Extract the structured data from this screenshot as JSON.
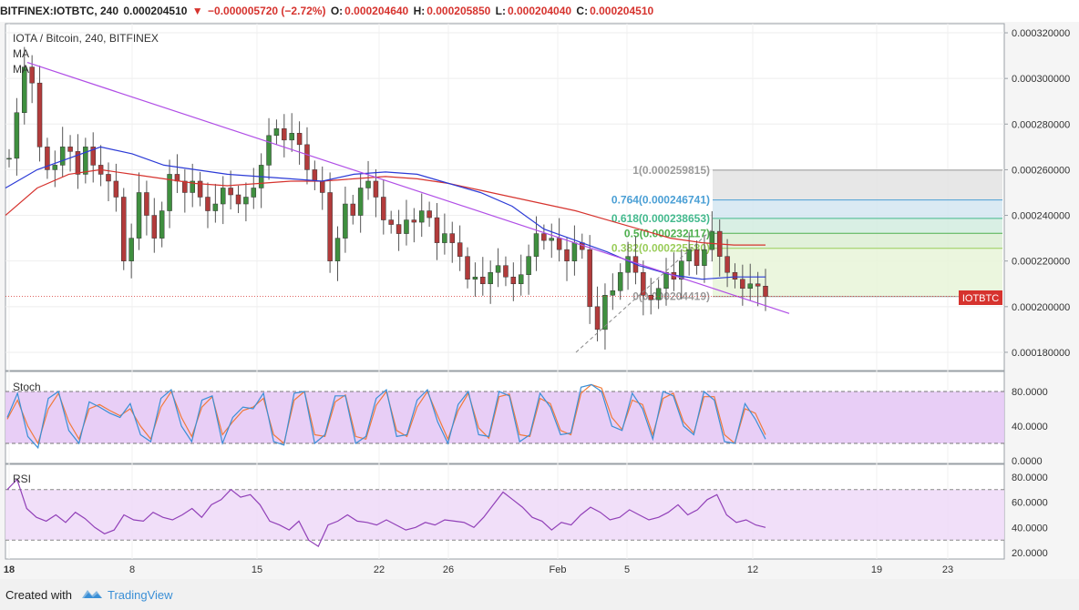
{
  "header": {
    "symbol": "BITFINEX:IOTBTC, 240",
    "last": "0.000204510",
    "arrow": "▼",
    "change": "−0.000005720 (−2.72%)",
    "o_label": "O:",
    "o": "0.000204640",
    "h_label": "H:",
    "h": "0.000205850",
    "l_label": "L:",
    "l": "0.000204040",
    "c_label": "C:",
    "c": "0.000204510"
  },
  "legend": {
    "title": "IOTA / Bitcoin, 240, BITFINEX",
    "ma1": "MA",
    "ma2": "MA"
  },
  "price_tag": "IOTBTC",
  "fib": {
    "levels": [
      {
        "ratio": 1,
        "label": "1(0.000259815)",
        "value": 0.000259815,
        "fill": "#e3e3e3",
        "color": "#9a9a9a"
      },
      {
        "ratio": 0.764,
        "label": "0.764(0.000246741)",
        "value": 0.000246741,
        "fill": "#d4e6f1",
        "color": "#4a9fd5"
      },
      {
        "ratio": 0.618,
        "label": "0.618(0.000238653)",
        "value": 0.000238653,
        "fill": "#d2ecdf",
        "color": "#43b98d"
      },
      {
        "ratio": 0.5,
        "label": "0.5(0.000232117)",
        "value": 0.000232117,
        "fill": "#dcefd4",
        "color": "#4fb04f"
      },
      {
        "ratio": 0.382,
        "label": "0.382(0.000225580)",
        "value": 0.00022558,
        "fill": "#e8f4d8",
        "color": "#9acd5a"
      },
      {
        "ratio": 0,
        "label": "0(0.000204419)",
        "value": 0.000204419,
        "fill": "#e8f4d8",
        "color": "#9a9a9a"
      }
    ]
  },
  "panels": {
    "stoch_label": "Stoch",
    "rsi_label": "RSI"
  },
  "footer": {
    "created": "Created with",
    "brand": "TradingView"
  },
  "chart_data": {
    "type": "candlestick",
    "title": "IOTA / Bitcoin, 240, BITFINEX",
    "x_ticks": [
      "18",
      "8",
      "15",
      "22",
      "26",
      "Feb",
      "5",
      "12",
      "19",
      "23"
    ],
    "y_ticks": [
      "0.000320000",
      "0.000300000",
      "0.000280000",
      "0.000260000",
      "0.000240000",
      "0.000220000",
      "0.000200000",
      "0.000180000"
    ],
    "ylim": [
      0.000172,
      0.000324
    ],
    "last_price": 0.00020451,
    "close_series": [
      0.000265,
      0.000285,
      0.000305,
      0.000298,
      0.00027,
      0.00026,
      0.000262,
      0.00027,
      0.000268,
      0.000258,
      0.00027,
      0.000262,
      0.000258,
      0.000255,
      0.000248,
      0.00022,
      0.00023,
      0.00025,
      0.00024,
      0.00023,
      0.000242,
      0.000258,
      0.000255,
      0.00025,
      0.000255,
      0.000248,
      0.000242,
      0.000245,
      0.000252,
      0.000249,
      0.000245,
      0.000248,
      0.000252,
      0.000262,
      0.000275,
      0.000278,
      0.000273,
      0.000276,
      0.000271,
      0.00026,
      0.000255,
      0.00025,
      0.00022,
      0.00023,
      0.000245,
      0.00024,
      0.000252,
      0.000255,
      0.000248,
      0.000238,
      0.000236,
      0.000232,
      0.000238,
      0.000237,
      0.000242,
      0.000239,
      0.000228,
      0.000232,
      0.000228,
      0.000222,
      0.000212,
      0.000213,
      0.00021,
      0.000215,
      0.000218,
      0.000213,
      0.00021,
      0.000214,
      0.000222,
      0.000232,
      0.000229,
      0.00023,
      0.000225,
      0.00022,
      0.000228,
      0.000225,
      0.0002,
      0.00019,
      0.000205,
      0.000207,
      0.000215,
      0.000222,
      0.000215,
      0.000205,
      0.000203,
      0.000208,
      0.000215,
      0.000212,
      0.00022,
      0.000225,
      0.000218,
      0.000225,
      0.000233,
      0.000222,
      0.000215,
      0.000212,
      0.000208,
      0.00021,
      0.000209,
      0.0002045
    ],
    "ma_blue": [
      0.000252,
      0.00026,
      0.000265,
      0.00027,
      0.000267,
      0.000262,
      0.00026,
      0.000258,
      0.000257,
      0.000256,
      0.000255,
      0.000258,
      0.000259,
      0.000258,
      0.000254,
      0.00025,
      0.000244,
      0.000234,
      0.000229,
      0.000224,
      0.000218,
      0.000214,
      0.000212,
      0.000213,
      0.000213
    ],
    "ma_red": [
      0.00024,
      0.000252,
      0.000258,
      0.00026,
      0.000258,
      0.000256,
      0.000254,
      0.000253,
      0.000254,
      0.000255,
      0.000255,
      0.000256,
      0.000257,
      0.000256,
      0.000254,
      0.000251,
      0.000248,
      0.000245,
      0.000242,
      0.000238,
      0.000234,
      0.00023,
      0.000228,
      0.000227,
      0.000227
    ],
    "trendline": {
      "from": 0.000307,
      "to": 0.000197
    },
    "stoch": {
      "ylim": [
        0,
        100
      ],
      "y_ticks": [
        "80.0000",
        "40.0000",
        "0.0000"
      ],
      "bands": [
        20,
        80
      ],
      "k": [
        50,
        78,
        28,
        15,
        72,
        80,
        35,
        20,
        68,
        62,
        55,
        50,
        66,
        30,
        22,
        72,
        82,
        40,
        22,
        70,
        75,
        20,
        50,
        62,
        60,
        78,
        22,
        18,
        78,
        80,
        20,
        30,
        75,
        75,
        20,
        28,
        72,
        82,
        28,
        30,
        70,
        82,
        45,
        20,
        65,
        80,
        30,
        28,
        80,
        75,
        22,
        30,
        78,
        62,
        30,
        32,
        85,
        88,
        80,
        40,
        35,
        78,
        60,
        25,
        80,
        75,
        40,
        30,
        80,
        70,
        22,
        20,
        66,
        48,
        25
      ],
      "d": [
        48,
        70,
        40,
        20,
        60,
        78,
        45,
        25,
        60,
        65,
        58,
        52,
        60,
        40,
        25,
        62,
        80,
        50,
        28,
        62,
        74,
        30,
        45,
        58,
        62,
        72,
        30,
        20,
        70,
        80,
        30,
        28,
        68,
        76,
        28,
        25,
        64,
        80,
        35,
        28,
        62,
        80,
        52,
        25,
        58,
        78,
        38,
        26,
        74,
        77,
        30,
        28,
        72,
        66,
        35,
        30,
        78,
        88,
        84,
        50,
        36,
        70,
        65,
        30,
        72,
        78,
        45,
        32,
        74,
        74,
        30,
        20,
        60,
        55,
        30
      ]
    },
    "rsi": {
      "ylim": [
        15,
        90
      ],
      "y_ticks": [
        "80.0000",
        "60.0000",
        "40.0000",
        "20.0000"
      ],
      "bands": [
        30,
        70
      ],
      "values": [
        70,
        78,
        55,
        48,
        45,
        50,
        44,
        52,
        47,
        40,
        35,
        38,
        50,
        46,
        45,
        52,
        48,
        46,
        50,
        55,
        48,
        58,
        62,
        70,
        64,
        66,
        58,
        45,
        42,
        38,
        45,
        30,
        25,
        42,
        45,
        50,
        45,
        44,
        42,
        46,
        42,
        38,
        40,
        44,
        42,
        46,
        45,
        44,
        40,
        48,
        58,
        68,
        62,
        56,
        48,
        45,
        38,
        44,
        42,
        50,
        56,
        52,
        46,
        48,
        54,
        50,
        46,
        48,
        52,
        58,
        50,
        54,
        62,
        66,
        50,
        44,
        46,
        42,
        40
      ]
    }
  }
}
